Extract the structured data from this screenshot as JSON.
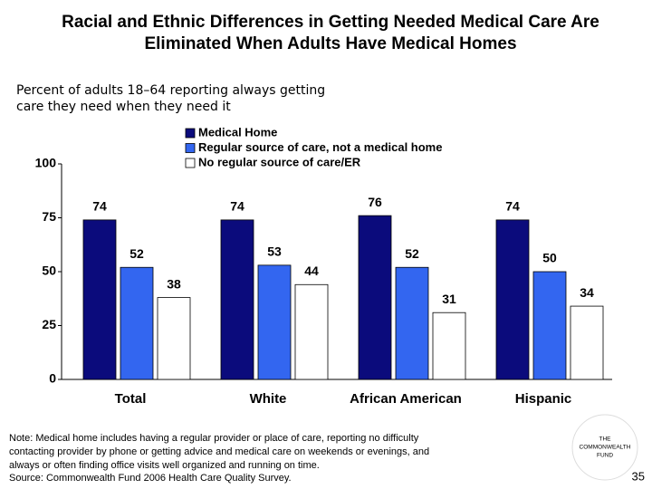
{
  "chart_data": {
    "type": "bar",
    "title": [
      "Racial and Ethnic Differences in Getting Needed Medical Care Are",
      "Eliminated When Adults Have Medical Homes"
    ],
    "subtitle": [
      "Percent of adults 18–64 reporting always getting",
      "care they need when they need it"
    ],
    "categories": [
      "Total",
      "White",
      "African American",
      "Hispanic"
    ],
    "series": [
      {
        "name": "Medical Home",
        "color": "#0b0b7c",
        "values": [
          74,
          74,
          76,
          74
        ]
      },
      {
        "name": "Regular source of care, not a medical home",
        "color": "#3366f0",
        "values": [
          52,
          53,
          52,
          50
        ]
      },
      {
        "name": "No regular source of care/ER",
        "color": "#ffffff",
        "values": [
          38,
          44,
          31,
          34
        ]
      }
    ],
    "ylim": [
      0,
      100
    ],
    "yticks": [
      0,
      25,
      50,
      75,
      100
    ],
    "grid": false,
    "legend": "top"
  },
  "note": [
    "Note: Medical home includes having a regular provider or place of care, reporting no difficulty",
    "contacting provider by phone or getting advice and medical care on weekends or evenings, and",
    "always or often finding office visits well organized and running on time.",
    "Source: Commonwealth Fund 2006 Health Care Quality Survey."
  ],
  "logo": [
    "THE",
    "COMMONWEALTH",
    "FUND"
  ],
  "page_number": "35"
}
